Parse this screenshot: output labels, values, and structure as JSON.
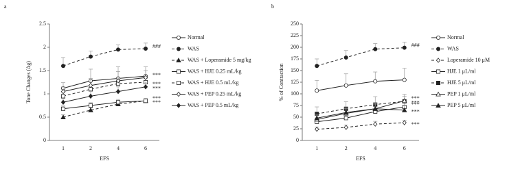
{
  "chart_data": [
    {
      "type": "line",
      "panel": "a",
      "xlabel": "EFS",
      "ylabel": "Tone Changes (Δg)",
      "categories": [
        "1",
        "2",
        "4",
        "6"
      ],
      "ylim": [
        0,
        2.5
      ],
      "yticks": [
        0,
        0.5,
        1,
        1.5,
        2,
        2.5
      ],
      "series": [
        {
          "name": "Normal",
          "color": "#222",
          "marker": "circle",
          "filled": false,
          "dashed": false,
          "values": [
            1.12,
            1.28,
            1.33,
            1.38
          ],
          "errors": [
            0.12,
            0.25,
            0.25,
            0.2
          ]
        },
        {
          "name": "WAS",
          "color": "#222",
          "marker": "circle",
          "filled": true,
          "dashed": true,
          "values": [
            1.6,
            1.8,
            1.95,
            1.97
          ],
          "errors": [
            0.18,
            0.12,
            0.1,
            0.12
          ],
          "significance": "###"
        },
        {
          "name": "WAS + Loperamide 5 mg/kg",
          "color": "#222",
          "marker": "triangle",
          "filled": true,
          "dashed": true,
          "values": [
            0.5,
            0.65,
            0.78,
            0.85
          ],
          "errors": [
            0.05,
            0.05,
            0.06,
            0.05
          ],
          "significance": "***"
        },
        {
          "name": "WAS + HJE 0.25 mL/kg",
          "color": "#222",
          "marker": "square",
          "filled": false,
          "dashed": false,
          "values": [
            0.68,
            0.75,
            0.82,
            0.85
          ],
          "errors": [
            0.06,
            0.06,
            0.06,
            0.05
          ],
          "significance": "***"
        },
        {
          "name": "WAS + HJE 0.5 mL/kg",
          "color": "#222",
          "marker": "square",
          "filled": false,
          "dashed": true,
          "values": [
            0.95,
            1.1,
            1.22,
            1.25
          ],
          "errors": [
            0.08,
            0.08,
            0.1,
            0.08
          ],
          "significance": "***"
        },
        {
          "name": "WAS + PEP 0.25 mL/kg",
          "color": "#222",
          "marker": "diamond",
          "filled": false,
          "dashed": false,
          "values": [
            1.05,
            1.18,
            1.28,
            1.35
          ],
          "errors": [
            0.1,
            0.15,
            0.2,
            0.15
          ],
          "significance": "***"
        },
        {
          "name": "WAS + PEP 0.5 mL/kg",
          "color": "#222",
          "marker": "diamond",
          "filled": true,
          "dashed": false,
          "values": [
            0.82,
            0.95,
            1.05,
            1.15
          ],
          "errors": [
            0.08,
            0.1,
            0.1,
            0.1
          ],
          "significance": "***"
        }
      ]
    },
    {
      "type": "line",
      "panel": "b",
      "xlabel": "EFS",
      "ylabel": "% of Contraction",
      "categories": [
        "1",
        "2",
        "4",
        "6"
      ],
      "ylim": [
        0,
        250
      ],
      "yticks": [
        0,
        25,
        50,
        75,
        100,
        125,
        150,
        175,
        200,
        225,
        250
      ],
      "series": [
        {
          "name": "Normal",
          "color": "#222",
          "marker": "circle",
          "filled": false,
          "dashed": false,
          "values": [
            107,
            118,
            127,
            130
          ],
          "errors": [
            22,
            25,
            20,
            25
          ]
        },
        {
          "name": "WAS",
          "color": "#222",
          "marker": "circle",
          "filled": true,
          "dashed": true,
          "values": [
            160,
            178,
            196,
            199
          ],
          "errors": [
            15,
            15,
            12,
            12
          ],
          "significance": "###"
        },
        {
          "name": "Loperamide 10 μM",
          "color": "#222",
          "marker": "diamond",
          "filled": false,
          "dashed": true,
          "values": [
            24,
            28,
            35,
            38
          ],
          "errors": [
            5,
            5,
            6,
            5
          ],
          "significance": "***"
        },
        {
          "name": "HJE 1 μL/ml",
          "color": "#222",
          "marker": "square",
          "filled": false,
          "dashed": false,
          "values": [
            40,
            48,
            62,
            72
          ],
          "errors": [
            8,
            10,
            12,
            10
          ],
          "significance": "***"
        },
        {
          "name": "HJE 5 μL/ml",
          "color": "#222",
          "marker": "square",
          "filled": true,
          "dashed": true,
          "values": [
            57,
            68,
            77,
            84
          ],
          "errors": [
            15,
            15,
            17,
            15
          ],
          "significance": "***"
        },
        {
          "name": "PEP 1 μL/ml",
          "color": "#222",
          "marker": "triangle",
          "filled": false,
          "dashed": false,
          "values": [
            45,
            58,
            68,
            85
          ],
          "errors": [
            8,
            10,
            12,
            10
          ],
          "significance": "***"
        },
        {
          "name": "PEP 5 μL/ml",
          "color": "#222",
          "marker": "triangle",
          "filled": true,
          "dashed": false,
          "values": [
            48,
            60,
            68,
            65
          ],
          "errors": [
            8,
            10,
            10,
            10
          ],
          "significance": "***"
        }
      ]
    }
  ]
}
